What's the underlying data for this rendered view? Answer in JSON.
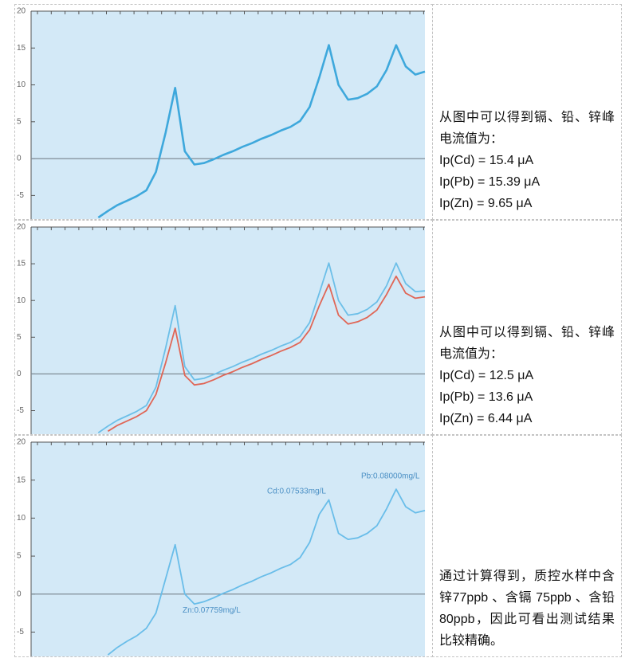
{
  "rows": [
    {
      "chart": {
        "type": "line",
        "ylim": [
          -8.2,
          20
        ],
        "yticks": [
          -5,
          0,
          5,
          10,
          15,
          20
        ],
        "series": [
          {
            "color": "#3ea8dc",
            "values": [
              null,
              null,
              null,
              null,
              null,
              null,
              null,
              -8,
              -7.1,
              -6.3,
              -5.7,
              -5.1,
              -4.3,
              -1.8,
              3.5,
              9.6,
              1,
              -0.8,
              -0.6,
              -0.1,
              0.5,
              1.0,
              1.6,
              2.1,
              2.7,
              3.2,
              3.8,
              4.3,
              5.1,
              7.0,
              11,
              15.4,
              10,
              8,
              8.2,
              8.8,
              9.8,
              12,
              15.39,
              12.5,
              11.4,
              11.8
            ]
          }
        ]
      },
      "text": [
        "从图中可以得到镉、铅、锌峰电流值为：",
        "Ip(Cd) = 15.4 μA",
        "Ip(Pb) = 15.39 μA",
        "Ip(Zn) = 9.65 μA"
      ]
    },
    {
      "chart": {
        "type": "line",
        "ylim": [
          -8.2,
          20
        ],
        "yticks": [
          -5,
          0,
          5,
          10,
          15,
          20
        ],
        "series": [
          {
            "color": "#6cbfe8",
            "values": [
              null,
              null,
              null,
              null,
              null,
              null,
              null,
              -8,
              -7.1,
              -6.3,
              -5.7,
              -5.1,
              -4.3,
              -1.8,
              3.5,
              9.3,
              1,
              -0.8,
              -0.6,
              -0.1,
              0.5,
              1.0,
              1.6,
              2.1,
              2.7,
              3.2,
              3.8,
              4.3,
              5.1,
              7.0,
              11,
              15.1,
              10,
              8,
              8.2,
              8.8,
              9.8,
              12,
              15.1,
              12.3,
              11.2,
              11.3
            ]
          },
          {
            "color": "#e06656",
            "values": [
              null,
              null,
              null,
              null,
              null,
              null,
              null,
              null,
              -7.8,
              -7.0,
              -6.4,
              -5.8,
              -5.0,
              -2.8,
              1.5,
              6.2,
              -0.2,
              -1.5,
              -1.3,
              -0.8,
              -0.2,
              0.3,
              0.9,
              1.4,
              2.0,
              2.5,
              3.1,
              3.6,
              4.3,
              6.0,
              9.3,
              12.2,
              8.0,
              6.8,
              7.1,
              7.7,
              8.7,
              10.8,
              13.3,
              11.0,
              10.3,
              10.5
            ]
          }
        ]
      },
      "text": [
        "从图中可以得到镉、铅、锌峰电流值为：",
        "Ip(Cd) = 12.5 μA",
        "Ip(Pb) = 13.6 μA",
        "Ip(Zn) = 6.44 μA"
      ]
    },
    {
      "chart": {
        "type": "line",
        "ylim": [
          -8.2,
          20
        ],
        "yticks": [
          -5,
          0,
          5,
          10,
          15,
          20
        ],
        "annotations": [
          "Zn:0.07759mg/L",
          "Cd:0.07533mg/L",
          "Pb:0.08000mg/L"
        ],
        "series": [
          {
            "color": "#69bde9",
            "values": [
              null,
              null,
              null,
              null,
              null,
              null,
              null,
              null,
              -8,
              -7,
              -6.2,
              -5.5,
              -4.5,
              -2.5,
              2,
              6.5,
              0,
              -1.3,
              -1.0,
              -0.5,
              0.1,
              0.6,
              1.2,
              1.7,
              2.3,
              2.8,
              3.4,
              3.9,
              4.8,
              6.8,
              10.5,
              12.4,
              8,
              7.2,
              7.4,
              8.0,
              9.0,
              11.2,
              13.8,
              11.5,
              10.7,
              11.0
            ]
          }
        ]
      },
      "text": [
        "通过计算得到，质控水样中含锌77ppb 、含镉 75ppb 、含铅80ppb，因此可看出测试结果比较精确。"
      ]
    }
  ]
}
